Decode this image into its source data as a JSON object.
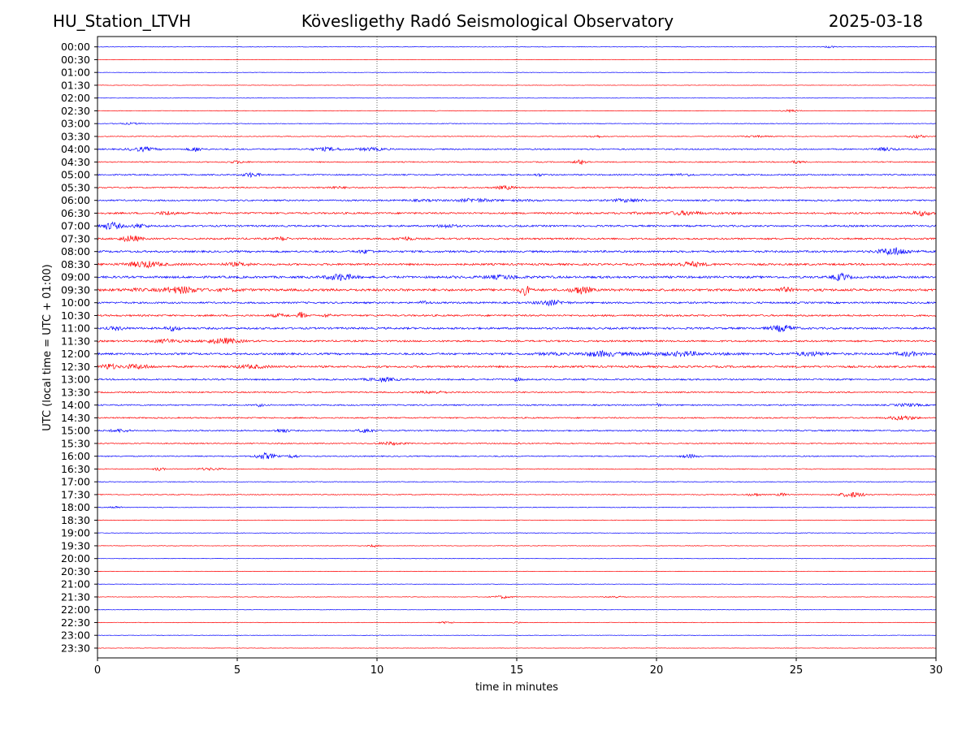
{
  "header": {
    "station": "HU_Station_LTVH",
    "observatory": "Kövesligethy Radó Seismological Observatory",
    "date": "2025-03-18"
  },
  "chart_data": {
    "type": "line",
    "title": "Kövesligethy Radó Seismological Observatory",
    "xlabel": "time in minutes",
    "ylabel": "UTC (local time = UTC + 01:00)",
    "xlim": [
      0,
      30
    ],
    "x_ticks": [
      0,
      5,
      10,
      15,
      20,
      25,
      30
    ],
    "grid": "vertical dotted lines at x ticks",
    "colors": {
      "on_hour": "#0000ff",
      "half_hour": "#ff0000"
    },
    "rows": [
      {
        "label": "00:00",
        "noise": 0.25,
        "events": [
          [
            26.2,
            1.0,
            0.3
          ]
        ]
      },
      {
        "label": "00:30",
        "noise": 0.2,
        "events": []
      },
      {
        "label": "01:00",
        "noise": 0.2,
        "events": []
      },
      {
        "label": "01:30",
        "noise": 0.2,
        "events": []
      },
      {
        "label": "02:00",
        "noise": 0.2,
        "events": []
      },
      {
        "label": "02:30",
        "noise": 0.25,
        "events": [
          [
            24.8,
            1.2,
            0.5
          ],
          [
            12.2,
            0.8,
            0.2
          ]
        ]
      },
      {
        "label": "03:00",
        "noise": 0.3,
        "events": [
          [
            1.2,
            0.8,
            0.8
          ]
        ]
      },
      {
        "label": "03:30",
        "noise": 0.35,
        "events": [
          [
            17.8,
            1.3,
            0.4
          ],
          [
            29.3,
            1.5,
            0.5
          ],
          [
            23.5,
            0.8,
            1.0
          ]
        ]
      },
      {
        "label": "04:00",
        "noise": 0.6,
        "events": [
          [
            1.6,
            1.8,
            1.0
          ],
          [
            3.5,
            2.0,
            0.4
          ],
          [
            8.2,
            1.5,
            1.5
          ],
          [
            9.8,
            1.3,
            1.2
          ],
          [
            28.2,
            1.5,
            0.7
          ]
        ]
      },
      {
        "label": "04:30",
        "noise": 0.5,
        "events": [
          [
            17.3,
            2.2,
            0.4
          ],
          [
            5.0,
            1.0,
            0.6
          ],
          [
            25.0,
            1.0,
            0.5
          ]
        ]
      },
      {
        "label": "05:00",
        "noise": 0.6,
        "events": [
          [
            5.5,
            2.0,
            0.5
          ],
          [
            15.8,
            1.0,
            0.3
          ],
          [
            21.0,
            1.0,
            0.6
          ]
        ]
      },
      {
        "label": "05:30",
        "noise": 0.6,
        "events": [
          [
            14.6,
            1.6,
            0.6
          ],
          [
            8.5,
            0.8,
            1.0
          ]
        ]
      },
      {
        "label": "06:00",
        "noise": 0.7,
        "events": [
          [
            13.5,
            1.5,
            3.0
          ],
          [
            19.0,
            1.4,
            1.5
          ]
        ]
      },
      {
        "label": "06:30",
        "noise": 0.8,
        "events": [
          [
            2.5,
            1.7,
            0.5
          ],
          [
            21.0,
            1.6,
            2.5
          ],
          [
            29.5,
            2.0,
            0.7
          ]
        ]
      },
      {
        "label": "07:00",
        "noise": 0.8,
        "events": [
          [
            0.5,
            3.5,
            0.6
          ],
          [
            1.5,
            2.0,
            0.5
          ],
          [
            12.5,
            1.5,
            0.6
          ]
        ]
      },
      {
        "label": "07:30",
        "noise": 0.8,
        "events": [
          [
            1.2,
            3.0,
            0.6
          ],
          [
            6.6,
            2.0,
            0.3
          ],
          [
            11.0,
            1.5,
            0.5
          ]
        ]
      },
      {
        "label": "08:00",
        "noise": 0.9,
        "events": [
          [
            28.5,
            3.5,
            1.2
          ],
          [
            9.6,
            1.4,
            0.5
          ]
        ]
      },
      {
        "label": "08:30",
        "noise": 0.9,
        "events": [
          [
            1.7,
            2.8,
            1.8
          ],
          [
            21.2,
            2.0,
            1.5
          ],
          [
            5.0,
            1.4,
            1.0
          ]
        ]
      },
      {
        "label": "09:00",
        "noise": 1.0,
        "events": [
          [
            8.7,
            3.0,
            1.0
          ],
          [
            26.6,
            3.2,
            0.5
          ],
          [
            14.5,
            1.6,
            2.0
          ]
        ]
      },
      {
        "label": "09:30",
        "noise": 1.1,
        "events": [
          [
            15.3,
            4.5,
            0.3
          ],
          [
            17.3,
            3.5,
            0.6
          ],
          [
            3.0,
            2.8,
            2.5
          ],
          [
            24.6,
            2.0,
            0.4
          ]
        ]
      },
      {
        "label": "10:00",
        "noise": 0.8,
        "events": [
          [
            16.2,
            2.3,
            1.0
          ],
          [
            11.7,
            1.5,
            0.3
          ]
        ]
      },
      {
        "label": "10:30",
        "noise": 0.8,
        "events": [
          [
            7.3,
            3.5,
            0.2
          ],
          [
            8.2,
            1.8,
            0.2
          ],
          [
            6.5,
            1.3,
            0.5
          ]
        ]
      },
      {
        "label": "11:00",
        "noise": 0.9,
        "events": [
          [
            24.5,
            3.0,
            0.8
          ],
          [
            2.7,
            2.0,
            0.4
          ],
          [
            0.7,
            1.5,
            0.5
          ]
        ]
      },
      {
        "label": "11:30",
        "noise": 0.8,
        "events": [
          [
            4.5,
            2.6,
            1.5
          ],
          [
            2.5,
            1.6,
            1.0
          ]
        ]
      },
      {
        "label": "12:00",
        "noise": 0.9,
        "events": [
          [
            18.0,
            2.3,
            2.8
          ],
          [
            21.0,
            2.0,
            2.5
          ],
          [
            25.5,
            1.6,
            1.8
          ],
          [
            29.0,
            1.8,
            1.0
          ]
        ]
      },
      {
        "label": "12:30",
        "noise": 0.9,
        "events": [
          [
            0.4,
            2.6,
            0.4
          ],
          [
            1.4,
            1.8,
            1.2
          ],
          [
            5.5,
            1.4,
            1.5
          ]
        ]
      },
      {
        "label": "13:00",
        "noise": 0.7,
        "events": [
          [
            10.2,
            1.6,
            1.5
          ],
          [
            15.0,
            1.3,
            0.3
          ]
        ]
      },
      {
        "label": "13:30",
        "noise": 0.6,
        "events": [
          [
            12.0,
            1.2,
            1.0
          ]
        ]
      },
      {
        "label": "14:00",
        "noise": 0.6,
        "events": [
          [
            5.8,
            1.4,
            0.2
          ],
          [
            20.0,
            1.5,
            0.2
          ],
          [
            29.0,
            1.2,
            1.0
          ]
        ]
      },
      {
        "label": "14:30",
        "noise": 0.6,
        "events": [
          [
            28.8,
            2.0,
            1.0
          ]
        ]
      },
      {
        "label": "15:00",
        "noise": 0.6,
        "events": [
          [
            6.6,
            1.8,
            0.4
          ],
          [
            9.6,
            1.8,
            0.5
          ],
          [
            0.8,
            1.3,
            0.7
          ]
        ]
      },
      {
        "label": "15:30",
        "noise": 0.5,
        "events": [
          [
            10.5,
            1.3,
            1.0
          ],
          [
            15.0,
            1.0,
            0.2
          ]
        ]
      },
      {
        "label": "16:00",
        "noise": 0.5,
        "events": [
          [
            6.0,
            2.8,
            0.7
          ],
          [
            7.0,
            1.8,
            0.3
          ],
          [
            21.2,
            1.6,
            0.5
          ]
        ]
      },
      {
        "label": "16:30",
        "noise": 0.4,
        "events": [
          [
            2.2,
            1.5,
            0.3
          ],
          [
            4.0,
            1.0,
            1.0
          ]
        ]
      },
      {
        "label": "17:00",
        "noise": 0.3,
        "events": []
      },
      {
        "label": "17:30",
        "noise": 0.4,
        "events": [
          [
            27.0,
            2.4,
            1.0
          ],
          [
            24.5,
            1.4,
            0.3
          ],
          [
            23.5,
            1.2,
            0.5
          ]
        ]
      },
      {
        "label": "18:00",
        "noise": 0.3,
        "events": [
          [
            0.6,
            1.3,
            0.4
          ]
        ]
      },
      {
        "label": "18:30",
        "noise": 0.25,
        "events": []
      },
      {
        "label": "19:00",
        "noise": 0.25,
        "events": []
      },
      {
        "label": "19:30",
        "noise": 0.25,
        "events": [
          [
            9.9,
            1.2,
            0.3
          ]
        ]
      },
      {
        "label": "20:00",
        "noise": 0.2,
        "events": []
      },
      {
        "label": "20:30",
        "noise": 0.2,
        "events": []
      },
      {
        "label": "21:00",
        "noise": 0.2,
        "events": []
      },
      {
        "label": "21:30",
        "noise": 0.25,
        "events": [
          [
            14.5,
            1.4,
            0.6
          ],
          [
            18.5,
            1.0,
            0.5
          ]
        ]
      },
      {
        "label": "22:00",
        "noise": 0.2,
        "events": []
      },
      {
        "label": "22:30",
        "noise": 0.25,
        "events": [
          [
            12.5,
            1.0,
            0.4
          ],
          [
            15.0,
            1.0,
            0.2
          ]
        ]
      },
      {
        "label": "23:00",
        "noise": 0.2,
        "events": []
      },
      {
        "label": "23:30",
        "noise": 0.2,
        "events": []
      }
    ]
  }
}
